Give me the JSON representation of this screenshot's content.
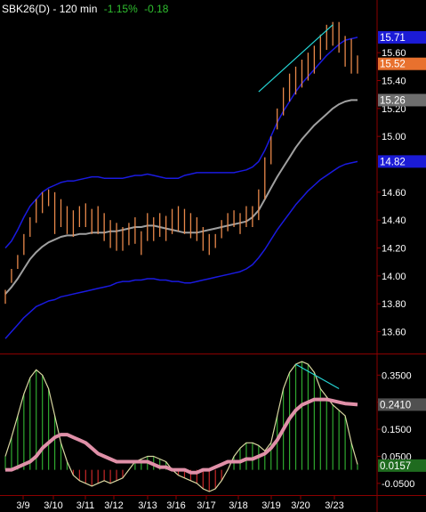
{
  "header": {
    "symbol": "SBK26(D)",
    "sep": " - ",
    "interval": "120 min",
    "change_pct": "-1.15%",
    "change_abs": "-0.18"
  },
  "colors": {
    "background": "#000000",
    "price_bar": "#e8884a",
    "bollinger_band": "#1a1ae0",
    "moving_average": "#a0a0a0",
    "trend_line": "#25d5d5",
    "histogram_positive": "#2fa82f",
    "histogram_negative": "#c82828",
    "oscillator_line": "#d8d6a0",
    "signal_line": "#e090a8",
    "axis_text": "#ffffff",
    "tag_price": "#e8712e",
    "tag_band": "#1b1bd6",
    "tag_ma": "#6e6e6e",
    "tag_signal": "#505050",
    "tag_osc": "#1f6b1f"
  },
  "chart_data": [
    {
      "type": "ohlc-with-bollinger",
      "title": "SBK26(D) - 120 min",
      "x_ticks": [
        "3/9",
        "3/10",
        "3/11",
        "3/12",
        "3/13",
        "3/16",
        "3/17",
        "3/18",
        "3/19",
        "3/20",
        "3/23"
      ],
      "y_ticks": [
        13.6,
        13.8,
        14.0,
        14.2,
        14.4,
        14.6,
        15.0,
        15.2,
        15.4,
        15.6
      ],
      "ylim": [
        13.45,
        15.85
      ],
      "grid": false,
      "last_values": {
        "upper_band": "15.71",
        "price": "15.52",
        "moving_average": "15.26",
        "lower_band": "14.82"
      },
      "price_range": [
        [
          13.8,
          13.9
        ],
        [
          13.95,
          14.05
        ],
        [
          14.05,
          14.15
        ],
        [
          14.15,
          14.3
        ],
        [
          14.28,
          14.42
        ],
        [
          14.38,
          14.55
        ],
        [
          14.45,
          14.6
        ],
        [
          14.5,
          14.62
        ],
        [
          14.3,
          14.6
        ],
        [
          14.35,
          14.55
        ],
        [
          14.3,
          14.5
        ],
        [
          14.28,
          14.47
        ],
        [
          14.35,
          14.5
        ],
        [
          14.35,
          14.52
        ],
        [
          14.3,
          14.48
        ],
        [
          14.3,
          14.5
        ],
        [
          14.25,
          14.45
        ],
        [
          14.2,
          14.4
        ],
        [
          14.18,
          14.38
        ],
        [
          14.18,
          14.35
        ],
        [
          14.22,
          14.38
        ],
        [
          14.23,
          14.42
        ],
        [
          14.15,
          14.32
        ],
        [
          14.25,
          14.45
        ],
        [
          14.25,
          14.42
        ],
        [
          14.28,
          14.45
        ],
        [
          14.25,
          14.43
        ],
        [
          14.3,
          14.48
        ],
        [
          14.32,
          14.5
        ],
        [
          14.3,
          14.48
        ],
        [
          14.27,
          14.45
        ],
        [
          14.25,
          14.42
        ],
        [
          14.18,
          14.35
        ],
        [
          14.15,
          14.3
        ],
        [
          14.2,
          14.3
        ],
        [
          14.27,
          14.4
        ],
        [
          14.32,
          14.45
        ],
        [
          14.35,
          14.47
        ],
        [
          14.3,
          14.45
        ],
        [
          14.35,
          14.5
        ],
        [
          14.35,
          14.5
        ],
        [
          14.4,
          14.62
        ],
        [
          14.55,
          14.85
        ],
        [
          14.8,
          15.0
        ],
        [
          15.05,
          15.2
        ],
        [
          15.15,
          15.35
        ],
        [
          15.25,
          15.45
        ],
        [
          15.3,
          15.5
        ],
        [
          15.35,
          15.55
        ],
        [
          15.4,
          15.6
        ],
        [
          15.45,
          15.65
        ],
        [
          15.55,
          15.73
        ],
        [
          15.62,
          15.8
        ],
        [
          15.65,
          15.82
        ],
        [
          15.6,
          15.82
        ],
        [
          15.5,
          15.72
        ],
        [
          15.45,
          15.7
        ],
        [
          15.45,
          15.58
        ]
      ],
      "upper_band": [
        14.2,
        14.25,
        14.33,
        14.42,
        14.5,
        14.55,
        14.6,
        14.63,
        14.65,
        14.67,
        14.68,
        14.68,
        14.69,
        14.7,
        14.71,
        14.71,
        14.7,
        14.7,
        14.7,
        14.7,
        14.71,
        14.72,
        14.72,
        14.73,
        14.72,
        14.71,
        14.7,
        14.7,
        14.7,
        14.72,
        14.73,
        14.74,
        14.74,
        14.74,
        14.74,
        14.74,
        14.74,
        14.74,
        14.75,
        14.76,
        14.78,
        14.82,
        14.9,
        15.0,
        15.1,
        15.18,
        15.25,
        15.32,
        15.38,
        15.43,
        15.48,
        15.53,
        15.58,
        15.62,
        15.66,
        15.69,
        15.7,
        15.71
      ],
      "moving_average": [
        13.87,
        13.92,
        13.98,
        14.05,
        14.12,
        14.17,
        14.21,
        14.24,
        14.26,
        14.28,
        14.29,
        14.29,
        14.3,
        14.3,
        14.31,
        14.31,
        14.31,
        14.32,
        14.32,
        14.33,
        14.34,
        14.35,
        14.35,
        14.36,
        14.36,
        14.35,
        14.34,
        14.33,
        14.32,
        14.31,
        14.31,
        14.31,
        14.32,
        14.33,
        14.34,
        14.35,
        14.36,
        14.37,
        14.38,
        14.39,
        14.42,
        14.47,
        14.55,
        14.63,
        14.71,
        14.78,
        14.85,
        14.92,
        14.98,
        15.03,
        15.08,
        15.12,
        15.16,
        15.2,
        15.23,
        15.25,
        15.26,
        15.26
      ],
      "lower_band": [
        13.55,
        13.6,
        13.65,
        13.7,
        13.74,
        13.78,
        13.8,
        13.82,
        13.83,
        13.85,
        13.86,
        13.87,
        13.88,
        13.89,
        13.9,
        13.91,
        13.92,
        13.93,
        13.95,
        13.96,
        13.96,
        13.97,
        13.97,
        13.98,
        13.98,
        13.97,
        13.97,
        13.96,
        13.96,
        13.95,
        13.95,
        13.96,
        13.97,
        13.98,
        13.99,
        14.0,
        14.01,
        14.02,
        14.03,
        14.05,
        14.08,
        14.13,
        14.19,
        14.26,
        14.33,
        14.39,
        14.45,
        14.51,
        14.56,
        14.61,
        14.65,
        14.69,
        14.72,
        14.75,
        14.78,
        14.8,
        14.81,
        14.82
      ],
      "trend_line": {
        "from": [
          41,
          15.32
        ],
        "to": [
          53,
          15.8
        ]
      }
    },
    {
      "type": "histogram-oscillator",
      "y_ticks": [
        -0.05,
        0.05,
        0.15,
        0.25,
        0.35
      ],
      "ylim": [
        -0.09,
        0.42
      ],
      "grid": false,
      "last_values": {
        "signal": "0.2410",
        "oscillator": "0.0157"
      },
      "oscillator": [
        0.05,
        0.12,
        0.2,
        0.28,
        0.34,
        0.37,
        0.35,
        0.3,
        0.2,
        0.1,
        0.03,
        -0.02,
        -0.04,
        -0.05,
        -0.06,
        -0.05,
        -0.04,
        -0.05,
        -0.04,
        -0.03,
        0.0,
        0.03,
        0.04,
        0.05,
        0.05,
        0.04,
        0.03,
        0.0,
        -0.02,
        -0.03,
        -0.04,
        -0.05,
        -0.07,
        -0.08,
        -0.07,
        -0.04,
        0.0,
        0.05,
        0.08,
        0.1,
        0.1,
        0.09,
        0.07,
        0.1,
        0.2,
        0.3,
        0.36,
        0.39,
        0.4,
        0.39,
        0.36,
        0.3,
        0.27,
        0.24,
        0.22,
        0.2,
        0.1,
        0.02
      ],
      "signal": [
        0.0,
        0.0,
        0.01,
        0.02,
        0.03,
        0.05,
        0.08,
        0.1,
        0.12,
        0.13,
        0.13,
        0.12,
        0.11,
        0.1,
        0.08,
        0.06,
        0.05,
        0.04,
        0.03,
        0.03,
        0.03,
        0.03,
        0.03,
        0.03,
        0.02,
        0.01,
        0.01,
        0.0,
        0.0,
        0.0,
        -0.01,
        -0.01,
        0.0,
        0.0,
        0.01,
        0.02,
        0.03,
        0.03,
        0.03,
        0.04,
        0.04,
        0.05,
        0.06,
        0.08,
        0.11,
        0.15,
        0.19,
        0.22,
        0.24,
        0.25,
        0.26,
        0.26,
        0.26,
        0.255,
        0.25,
        0.245,
        0.243,
        0.241
      ],
      "trend_line": {
        "from": [
          47,
          0.39
        ],
        "to": [
          54,
          0.3
        ]
      }
    }
  ]
}
